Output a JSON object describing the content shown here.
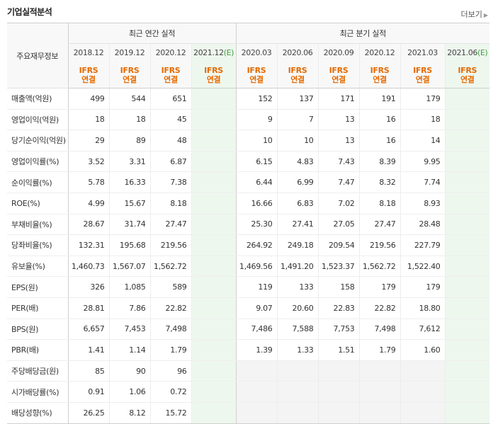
{
  "title": "기업실적분석",
  "more_label": "더보기",
  "row_header_label": "주요재무정보",
  "group_annual": "최근 연간 실적",
  "group_quarter": "최근 분기 실적",
  "periods": [
    {
      "label": "2018.12",
      "est": false
    },
    {
      "label": "2019.12",
      "est": false
    },
    {
      "label": "2020.12",
      "est": false
    },
    {
      "label": "2021.12",
      "est": true
    },
    {
      "label": "2020.03",
      "est": false
    },
    {
      "label": "2020.06",
      "est": false
    },
    {
      "label": "2020.09",
      "est": false
    },
    {
      "label": "2020.12",
      "est": false
    },
    {
      "label": "2021.03",
      "est": false
    },
    {
      "label": "2021.06",
      "est": true
    }
  ],
  "est_mark": "(E)",
  "ifrs_line1": "IFRS",
  "ifrs_line2": "연결",
  "rows": [
    {
      "label": "매출액(억원)",
      "values": [
        "499",
        "544",
        "651",
        "",
        "152",
        "137",
        "171",
        "191",
        "179",
        ""
      ]
    },
    {
      "label": "영업이익(억원)",
      "values": [
        "18",
        "18",
        "45",
        "",
        "9",
        "7",
        "13",
        "16",
        "18",
        ""
      ]
    },
    {
      "label": "당기순이익(억원)",
      "values": [
        "29",
        "89",
        "48",
        "",
        "10",
        "10",
        "13",
        "16",
        "14",
        ""
      ]
    },
    {
      "label": "영업이익률(%)",
      "values": [
        "3.52",
        "3.31",
        "6.87",
        "",
        "6.15",
        "4.83",
        "7.43",
        "8.39",
        "9.95",
        ""
      ]
    },
    {
      "label": "순이익률(%)",
      "values": [
        "5.78",
        "16.33",
        "7.38",
        "",
        "6.44",
        "6.99",
        "7.47",
        "8.32",
        "7.74",
        ""
      ]
    },
    {
      "label": "ROE(%)",
      "values": [
        "4.99",
        "15.67",
        "8.18",
        "",
        "16.66",
        "6.83",
        "7.02",
        "8.18",
        "8.93",
        ""
      ]
    },
    {
      "label": "부채비율(%)",
      "values": [
        "28.67",
        "31.74",
        "27.47",
        "",
        "25.30",
        "27.41",
        "27.05",
        "27.47",
        "28.48",
        ""
      ]
    },
    {
      "label": "당좌비율(%)",
      "values": [
        "132.31",
        "195.68",
        "219.56",
        "",
        "264.92",
        "249.18",
        "209.54",
        "219.56",
        "227.79",
        ""
      ]
    },
    {
      "label": "유보율(%)",
      "values": [
        "1,460.73",
        "1,567.07",
        "1,562.72",
        "",
        "1,469.56",
        "1,491.20",
        "1,523.37",
        "1,562.72",
        "1,522.40",
        ""
      ]
    },
    {
      "label": "EPS(원)",
      "values": [
        "326",
        "1,085",
        "589",
        "",
        "119",
        "133",
        "158",
        "179",
        "179",
        ""
      ]
    },
    {
      "label": "PER(배)",
      "values": [
        "28.81",
        "7.86",
        "22.82",
        "",
        "9.07",
        "20.60",
        "22.83",
        "22.82",
        "18.80",
        ""
      ]
    },
    {
      "label": "BPS(원)",
      "values": [
        "6,657",
        "7,453",
        "7,498",
        "",
        "7,486",
        "7,588",
        "7,753",
        "7,498",
        "7,612",
        ""
      ]
    },
    {
      "label": "PBR(배)",
      "values": [
        "1.41",
        "1.14",
        "1.79",
        "",
        "1.39",
        "1.33",
        "1.51",
        "1.79",
        "1.60",
        ""
      ]
    },
    {
      "label": "주당배당금(원)",
      "values": [
        "85",
        "90",
        "96",
        "",
        "",
        "",
        "",
        "",
        "",
        ""
      ]
    },
    {
      "label": "시가배당률(%)",
      "values": [
        "0.91",
        "1.06",
        "0.72",
        "",
        "",
        "",
        "",
        "",
        "",
        ""
      ]
    },
    {
      "label": "배당성향(%)",
      "values": [
        "26.25",
        "8.12",
        "15.72",
        "",
        "",
        "",
        "",
        "",
        "",
        ""
      ]
    }
  ]
}
